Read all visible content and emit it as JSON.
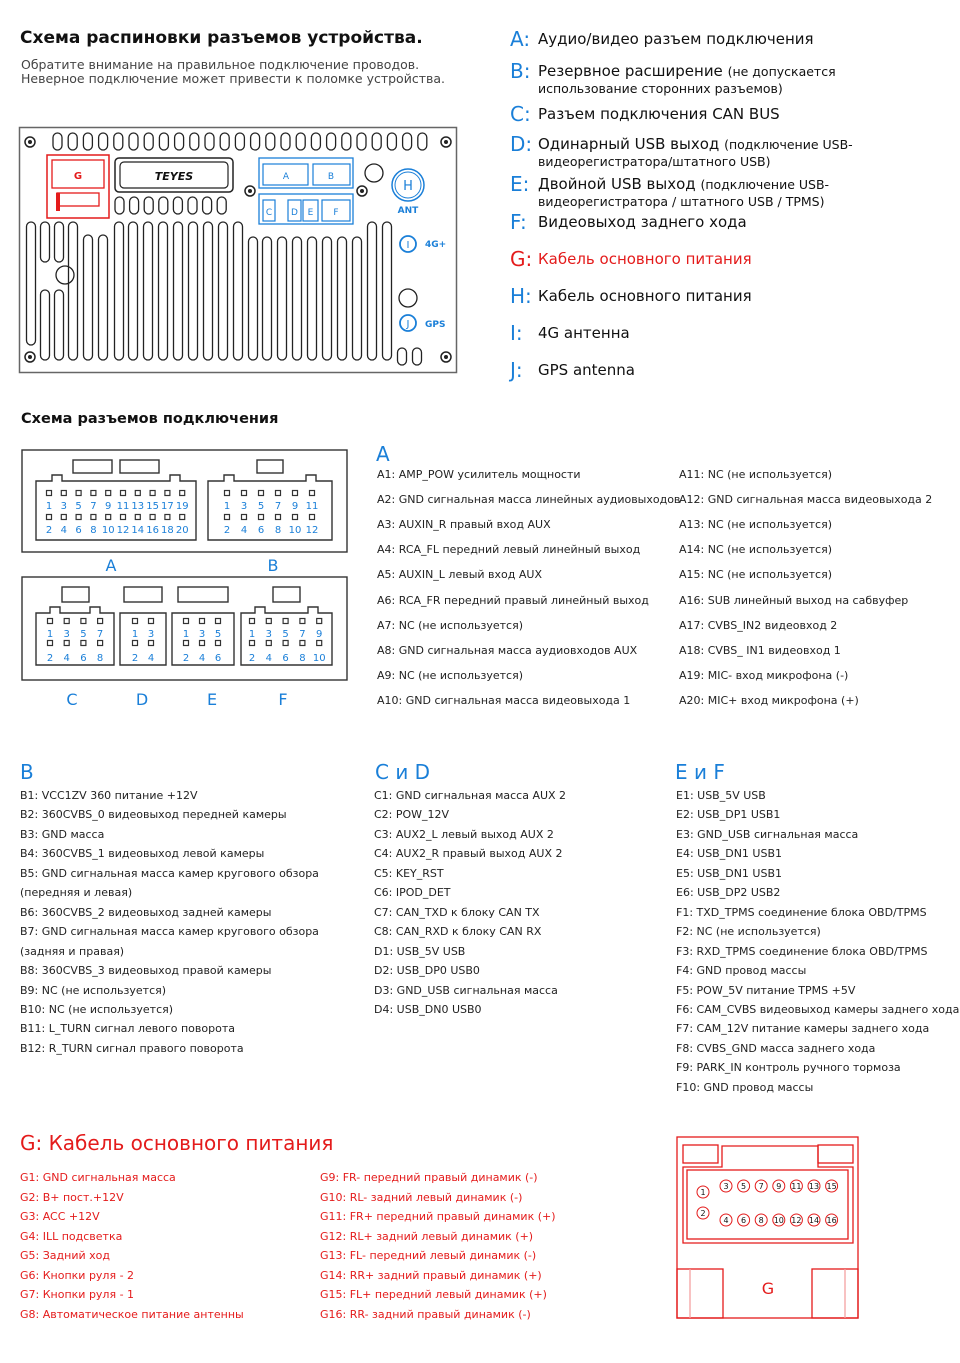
{
  "header": {
    "title": "Схема распиновки разъемов устройства.",
    "subtitle_lines": [
      "Обратите внимание на правильное подключение проводов.",
      "Неверное подключение может привести к поломке устройства."
    ]
  },
  "device": {
    "brand": "TEYES",
    "port_labels": {
      "G": "G",
      "A": "A",
      "B": "B",
      "C": "C",
      "D": "D",
      "E": "E",
      "F": "F",
      "H": "H",
      "I": "I",
      "J": "J"
    },
    "ant_label": "ANT",
    "lte_label": "4G+",
    "gps_label": "GPS",
    "colors": {
      "red": "#e41b1b",
      "blue": "#1a7fd8",
      "outline": "#222222"
    }
  },
  "legend": [
    {
      "letter": "A:",
      "text": "Аудио/видео разъем подключения",
      "note": "",
      "red": false
    },
    {
      "letter": "B:",
      "text": "Резервное расширение",
      "note": "(не допускается использование сторонних разъемов)",
      "red": false
    },
    {
      "letter": "C:",
      "text": "Разъем подключения CAN BUS",
      "note": "",
      "red": false
    },
    {
      "letter": "D:",
      "text": "Одинарный USB выход",
      "note": "(подключение USB-видеорегистратора/штатного USB)",
      "red": false
    },
    {
      "letter": "E:",
      "text": "Двойной USB выход",
      "note": "(подключение USB-видеорегистратора / штатного USB / TPMS)",
      "red": false
    },
    {
      "letter": "F:",
      "text": "Видеовыход заднего хода",
      "note": "",
      "red": false
    },
    {
      "letter": "G:",
      "text": "Кабель основного питания",
      "note": "",
      "red": true
    },
    {
      "letter": "H:",
      "text": "Кабель основного питания",
      "note": "",
      "red": false
    },
    {
      "letter": "I:",
      "text": "4G антенна",
      "note": "",
      "red": false
    },
    {
      "letter": "J:",
      "text": "GPS antenna",
      "note": "",
      "red": false
    }
  ],
  "connectors_title": "Схема разъемов подключения",
  "connectors": {
    "A": {
      "label": "A",
      "top": [
        "1",
        "3",
        "5",
        "7",
        "9",
        "11",
        "13",
        "15",
        "17",
        "19"
      ],
      "bottom": [
        "2",
        "4",
        "6",
        "8",
        "10",
        "12",
        "14",
        "16",
        "18",
        "20"
      ]
    },
    "B": {
      "label": "B",
      "top": [
        "1",
        "3",
        "5",
        "7",
        "9",
        "11"
      ],
      "bottom": [
        "2",
        "4",
        "6",
        "8",
        "10",
        "12"
      ]
    },
    "C": {
      "label": "C",
      "top": [
        "1",
        "3",
        "5",
        "7"
      ],
      "bottom": [
        "2",
        "4",
        "6",
        "8"
      ]
    },
    "D": {
      "label": "D",
      "top": [
        "1",
        "3"
      ],
      "bottom": [
        "2",
        "4"
      ]
    },
    "E": {
      "label": "E",
      "top": [
        "1",
        "3",
        "5"
      ],
      "bottom": [
        "2",
        "4",
        "6"
      ]
    },
    "F": {
      "label": "F",
      "top": [
        "1",
        "3",
        "5",
        "7",
        "9"
      ],
      "bottom": [
        "2",
        "4",
        "6",
        "8",
        "10"
      ]
    }
  },
  "section_a": {
    "heading": "A",
    "left": [
      "A1: AMP_POW усилитель мощности",
      "A2: GND сигнальная масса линейных аудиовыходов",
      "A3: AUXIN_R  правый вход AUX",
      "A4: RCA_FL  передний левый линейный выход",
      "A5: AUXIN_L  левый вход AUX",
      "A6: RCA_FR передний правый линейный выход",
      "A7: NC (не используется)",
      "A8: GND сигнальная масса аудиовходов AUX",
      "A9: NC (не используется)",
      "A10: GND сигнальная масса видеовыхода 1"
    ],
    "right": [
      "A11: NC (не используется)",
      "A12: GND сигнальная масса видеовыхода 2",
      "A13: NC (не используется)",
      "A14: NC (не используется)",
      "A15: NC (не используется)",
      "A16: SUB линейный выход на сабвуфер",
      "A17: CVBS_IN2 видеовход 2",
      "A18: CVBS_ IN1 видеовход 1",
      "A19: MIC-  вход микрофона (-)",
      "A20: MIC+ вход микрофона (+)"
    ]
  },
  "section_b": {
    "heading": "B",
    "items": [
      "B1: VCC1ZV 360 питание +12V",
      "B2: 360CVBS_0 видеовыход передней камеры",
      "B3: GND масса",
      "B4: 360CVBS_1 видеовыход левой камеры",
      "B5: GND сигнальная масса камер кругового обзора",
      "(передняя и левая)",
      "B6: 360CVBS_2 видеовыход задней камеры",
      "B7: GND сигнальная масса камер кругового обзора",
      "(задняя и правая)",
      "B8: 360CVBS_3 видеовыход правой камеры",
      "B9: NC (не используется)",
      "B10: NC (не используется)",
      "B11: L_TURN сигнал левого поворота",
      "B12: R_TURN сигнал правого поворота"
    ]
  },
  "section_cd": {
    "heading": "C и D",
    "items": [
      "C1: GND сигнальная масса AUX 2",
      "C2: POW_12V",
      "C3: AUX2_L левый выход AUX 2",
      "C4: AUX2_R правый выход AUX 2",
      "C5: KEY_RST",
      "C6: IPOD_DET",
      "C7: CAN_TXD  к блоку CAN TX",
      "C8: CAN_RXD  к блоку CAN RX",
      "D1: USB_5V USB",
      "D2: USB_DP0 USB0",
      "D3: GND_USB сигнальная масса",
      "D4: USB_DN0 USB0"
    ]
  },
  "section_ef": {
    "heading": "E и F",
    "items": [
      "E1: USB_5V USB",
      "E2: USB_DP1 USB1",
      "E3: GND_USB сигнальная масса",
      "E4: USB_DN1 USB1",
      "E5: USB_DN1 USB1",
      "E6: USB_DP2 USB2",
      "F1: TXD_TPMS соединение блока OBD/TPMS",
      "F2: NC (не используется)",
      "F3: RXD_TPMS  соединение блока OBD/TPMS",
      "F4: GND провод массы",
      "F5: POW_5V питание TPMS +5V",
      "F6: CAM_CVBS видеовыход камеры заднего хода",
      "F7: CAM_12V питание камеры заднего хода",
      "F8: CVBS_GND масса заднего хода",
      "F9: PARK_IN контроль ручного тормоза",
      "F10: GND провод массы"
    ]
  },
  "section_g": {
    "heading": "G: Кабель основного питания",
    "left": [
      "G1: GND сигнальная масса",
      "G2: B+  пост.+12V",
      "G3: ACC  +12V",
      "G4: ILL подсветка",
      "G5: Задний ход",
      "G6: Кнопки руля - 2",
      "G7: Кнопки руля - 1",
      "G8: Автоматическое питание антенны"
    ],
    "right": [
      "G9: FR- передний правый динамик (-)",
      "G10: RL- задний левый динамик (-)",
      "G11: FR+ передний правый динамик (+)",
      "G12: RL+ задний левый динамик (+)",
      "G13: FL- передний левый динамик (-)",
      "G14: RR+ задний правый динамик (+)",
      "G15: FL+ передний левый динамик (+)",
      "G16: RR- задний правый динамик (-)"
    ],
    "connector_label": "G",
    "pins_left": [
      "1",
      "2"
    ],
    "pins_top": [
      "3",
      "5",
      "7",
      "9",
      "11",
      "13",
      "15"
    ],
    "pins_bottom": [
      "4",
      "6",
      "8",
      "10",
      "12",
      "14",
      "16"
    ]
  }
}
